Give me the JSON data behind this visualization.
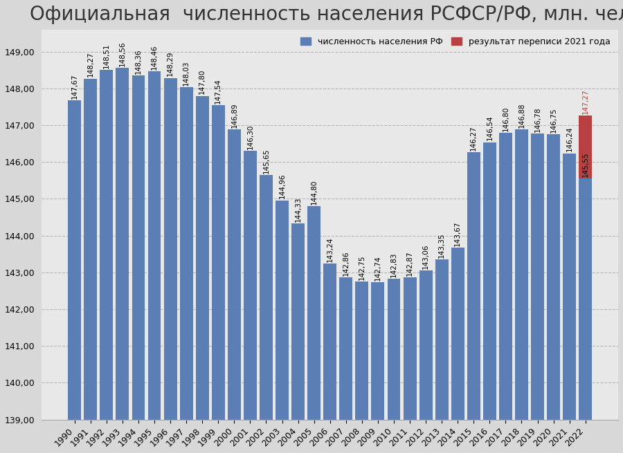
{
  "title": "Официальная  численность населения РСФСР/РФ, млн. чел",
  "years": [
    1990,
    1991,
    1992,
    1993,
    1994,
    1995,
    1996,
    1997,
    1998,
    1999,
    2000,
    2001,
    2002,
    2003,
    2004,
    2005,
    2006,
    2007,
    2008,
    2009,
    2010,
    2011,
    2012,
    2013,
    2014,
    2015,
    2016,
    2017,
    2018,
    2019,
    2020,
    2021,
    2022
  ],
  "values": [
    147.67,
    148.27,
    148.51,
    148.56,
    148.36,
    148.46,
    148.29,
    148.03,
    147.8,
    147.54,
    146.89,
    146.3,
    145.65,
    144.96,
    144.33,
    144.8,
    143.24,
    142.86,
    142.75,
    142.74,
    142.83,
    142.87,
    143.06,
    143.35,
    143.67,
    146.27,
    146.54,
    146.8,
    146.88,
    146.78,
    146.75,
    146.24,
    145.55
  ],
  "census_2021_value": 147.27,
  "bar_color": "#5b7fb5",
  "census_color": "#b94040",
  "plot_bg_color": "#e8e8e8",
  "fig_bg_color": "#d8d8d8",
  "ylim_min": 139.0,
  "ylim_max": 149.0,
  "ytick_step": 1.0,
  "legend_bar_label": "численность населения РФ",
  "legend_census_label": "результат переписи 2021 года",
  "title_fontsize": 20,
  "label_fontsize": 7.5,
  "tick_fontsize": 9
}
